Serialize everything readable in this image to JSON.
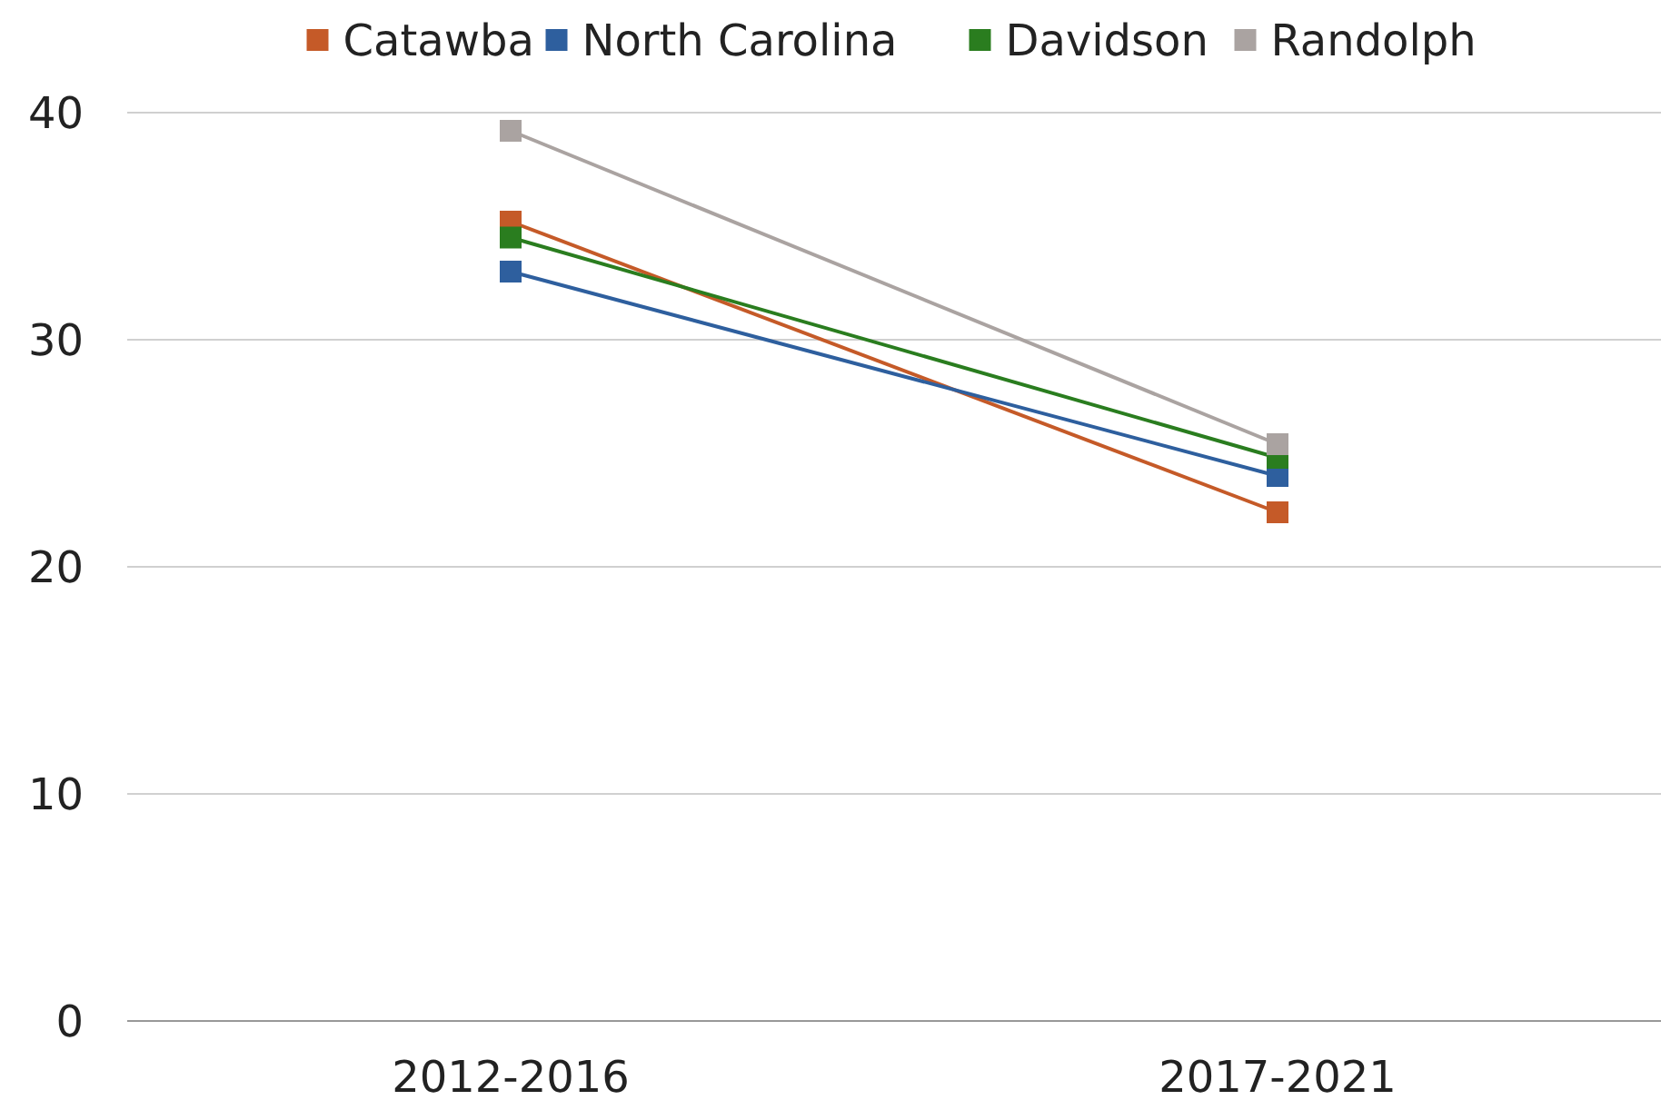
{
  "chart_data": {
    "type": "line",
    "categories": [
      "2012-2016",
      "2017-2021"
    ],
    "series": [
      {
        "name": "Catawba",
        "color": "#c55a28",
        "values": [
          35.2,
          22.4
        ]
      },
      {
        "name": "North Carolina",
        "color": "#2e5f9e",
        "values": [
          33.0,
          24.0
        ]
      },
      {
        "name": "Davidson",
        "color": "#2a7d1f",
        "values": [
          34.5,
          24.8
        ]
      },
      {
        "name": "Randolph",
        "color": "#aaa3a1",
        "values": [
          39.2,
          25.4
        ]
      }
    ],
    "ylim": [
      0,
      40
    ],
    "yticks": [
      0,
      10,
      20,
      30,
      40
    ],
    "grid": "y",
    "legend": "top",
    "marker": "square",
    "line_style": "solid"
  }
}
